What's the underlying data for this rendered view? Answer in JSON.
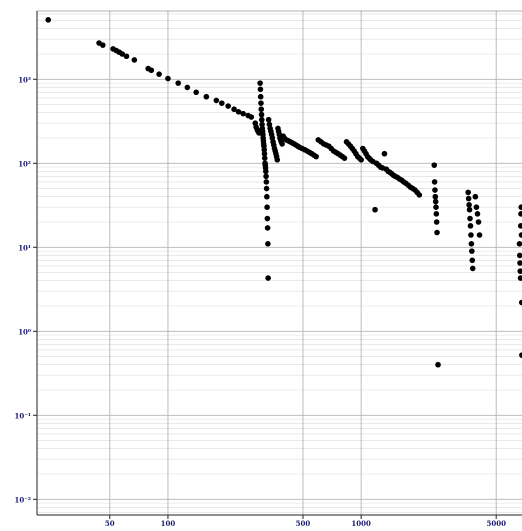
{
  "chart_data": {
    "type": "scatter",
    "title": "",
    "xlabel": "",
    "ylabel": "",
    "x_scale": "log",
    "y_scale": "log",
    "xlim": [
      21,
      6800
    ],
    "ylim": [
      0.0065,
      6500
    ],
    "grid": true,
    "legend": "none",
    "point_color": "#000000",
    "x_ticks": [
      {
        "value": 50,
        "label": "50"
      },
      {
        "value": 100,
        "label": "100"
      },
      {
        "value": 500,
        "label": "500"
      },
      {
        "value": 1000,
        "label": "1000"
      },
      {
        "value": 5000,
        "label": "5000"
      }
    ],
    "y_ticks": [
      {
        "value": 1000,
        "label": "10³"
      },
      {
        "value": 100,
        "label": "10²"
      },
      {
        "value": 10,
        "label": "10¹"
      },
      {
        "value": 1,
        "label": "10⁰"
      },
      {
        "value": 0.1,
        "label": "10⁻¹"
      },
      {
        "value": 0.01,
        "label": "10⁻²"
      }
    ],
    "series": [
      {
        "points": [
          [
            24,
            5100
          ],
          [
            44,
            2700
          ],
          [
            46,
            2550
          ],
          [
            52,
            2300
          ],
          [
            54,
            2200
          ],
          [
            56,
            2100
          ],
          [
            58,
            2000
          ],
          [
            61,
            1880
          ],
          [
            67,
            1700
          ],
          [
            79,
            1340
          ],
          [
            82,
            1280
          ],
          [
            90,
            1150
          ],
          [
            100,
            1020
          ],
          [
            113,
            900
          ],
          [
            126,
            800
          ],
          [
            140,
            700
          ],
          [
            158,
            620
          ],
          [
            178,
            560
          ],
          [
            190,
            520
          ],
          [
            205,
            480
          ],
          [
            220,
            440
          ],
          [
            232,
            410
          ],
          [
            245,
            390
          ],
          [
            260,
            370
          ],
          [
            270,
            355
          ],
          [
            283,
            300
          ],
          [
            286,
            270
          ],
          [
            290,
            250
          ],
          [
            293,
            240
          ],
          [
            296,
            230
          ],
          [
            300,
            900
          ],
          [
            301,
            760
          ],
          [
            302,
            620
          ],
          [
            303,
            520
          ],
          [
            304,
            440
          ],
          [
            305,
            380
          ],
          [
            306,
            330
          ],
          [
            307,
            290
          ],
          [
            308,
            260
          ],
          [
            309,
            240
          ],
          [
            310,
            220
          ],
          [
            311,
            200
          ],
          [
            312,
            185
          ],
          [
            313,
            170
          ],
          [
            314,
            160
          ],
          [
            315,
            145
          ],
          [
            316,
            130
          ],
          [
            317,
            115
          ],
          [
            318,
            100
          ],
          [
            319,
            95
          ],
          [
            320,
            88
          ],
          [
            321,
            80
          ],
          [
            322,
            70
          ],
          [
            323,
            60
          ],
          [
            324,
            50
          ],
          [
            325,
            40
          ],
          [
            326,
            30
          ],
          [
            327,
            22
          ],
          [
            328,
            17
          ],
          [
            329,
            11
          ],
          [
            330,
            4.3
          ],
          [
            332,
            330
          ],
          [
            335,
            290
          ],
          [
            338,
            260
          ],
          [
            341,
            240
          ],
          [
            344,
            220
          ],
          [
            347,
            200
          ],
          [
            350,
            180
          ],
          [
            353,
            165
          ],
          [
            356,
            150
          ],
          [
            359,
            140
          ],
          [
            362,
            130
          ],
          [
            365,
            120
          ],
          [
            368,
            110
          ],
          [
            371,
            260
          ],
          [
            374,
            240
          ],
          [
            377,
            220
          ],
          [
            380,
            200
          ],
          [
            383,
            190
          ],
          [
            386,
            180
          ],
          [
            390,
            170
          ],
          [
            395,
            210
          ],
          [
            400,
            200
          ],
          [
            410,
            190
          ],
          [
            420,
            185
          ],
          [
            430,
            180
          ],
          [
            440,
            175
          ],
          [
            450,
            170
          ],
          [
            460,
            165
          ],
          [
            470,
            160
          ],
          [
            480,
            155
          ],
          [
            495,
            150
          ],
          [
            510,
            145
          ],
          [
            525,
            140
          ],
          [
            540,
            135
          ],
          [
            555,
            130
          ],
          [
            570,
            125
          ],
          [
            585,
            120
          ],
          [
            600,
            190
          ],
          [
            620,
            180
          ],
          [
            640,
            170
          ],
          [
            660,
            165
          ],
          [
            680,
            160
          ],
          [
            700,
            150
          ],
          [
            720,
            140
          ],
          [
            740,
            135
          ],
          [
            760,
            130
          ],
          [
            780,
            125
          ],
          [
            800,
            120
          ],
          [
            820,
            115
          ],
          [
            840,
            180
          ],
          [
            860,
            170
          ],
          [
            880,
            160
          ],
          [
            900,
            150
          ],
          [
            920,
            140
          ],
          [
            940,
            130
          ],
          [
            960,
            120
          ],
          [
            980,
            115
          ],
          [
            1000,
            110
          ],
          [
            1020,
            150
          ],
          [
            1040,
            140
          ],
          [
            1060,
            130
          ],
          [
            1080,
            120
          ],
          [
            1100,
            115
          ],
          [
            1120,
            110
          ],
          [
            1150,
            105
          ],
          [
            1180,
            28
          ],
          [
            1200,
            100
          ],
          [
            1230,
            95
          ],
          [
            1260,
            90
          ],
          [
            1290,
            88
          ],
          [
            1320,
            130
          ],
          [
            1350,
            85
          ],
          [
            1380,
            80
          ],
          [
            1410,
            78
          ],
          [
            1440,
            75
          ],
          [
            1470,
            72
          ],
          [
            1500,
            70
          ],
          [
            1540,
            68
          ],
          [
            1580,
            65
          ],
          [
            1620,
            63
          ],
          [
            1660,
            60
          ],
          [
            1700,
            58
          ],
          [
            1750,
            55
          ],
          [
            1800,
            52
          ],
          [
            1850,
            50
          ],
          [
            1900,
            48
          ],
          [
            1950,
            45
          ],
          [
            2000,
            42
          ],
          [
            2390,
            95
          ],
          [
            2400,
            60
          ],
          [
            2410,
            48
          ],
          [
            2420,
            40
          ],
          [
            2430,
            35
          ],
          [
            2440,
            30
          ],
          [
            2450,
            25
          ],
          [
            2460,
            20
          ],
          [
            2470,
            15
          ],
          [
            2500,
            0.4
          ],
          [
            3580,
            45
          ],
          [
            3600,
            38
          ],
          [
            3620,
            32
          ],
          [
            3640,
            28
          ],
          [
            3660,
            22
          ],
          [
            3680,
            18
          ],
          [
            3700,
            14
          ],
          [
            3720,
            11
          ],
          [
            3740,
            9
          ],
          [
            3760,
            7
          ],
          [
            3780,
            5.6
          ],
          [
            3900,
            40
          ],
          [
            3950,
            30
          ],
          [
            4000,
            25
          ],
          [
            4050,
            20
          ],
          [
            4100,
            14
          ],
          [
            6600,
            11
          ],
          [
            6620,
            8
          ],
          [
            6640,
            6.5
          ],
          [
            6660,
            5.2
          ],
          [
            6680,
            4.3
          ],
          [
            6700,
            18
          ],
          [
            6720,
            25
          ],
          [
            6740,
            30
          ],
          [
            6760,
            14
          ],
          [
            6780,
            2.2
          ],
          [
            6790,
            0.52
          ]
        ]
      }
    ]
  }
}
